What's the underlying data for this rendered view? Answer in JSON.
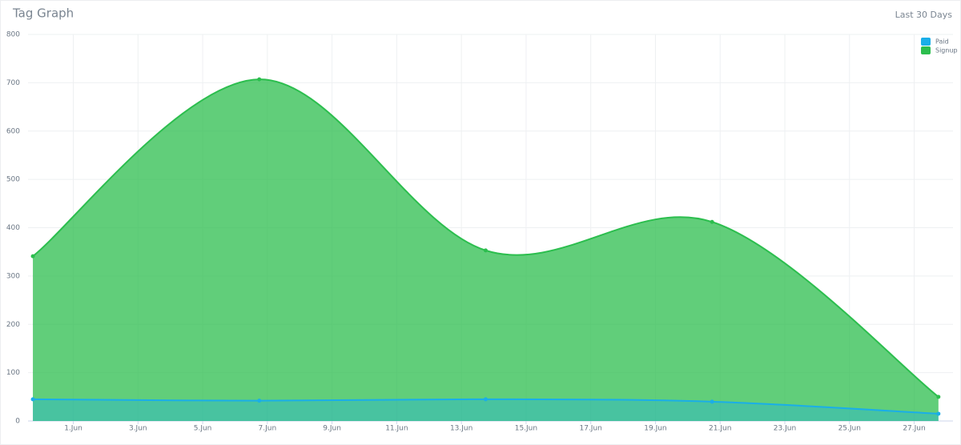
{
  "chart_data": {
    "type": "areaspline",
    "title": "Tag Graph",
    "subtitle": "Last 30 Days",
    "x": [
      -0.25,
      6.75,
      13.75,
      20.75,
      27.75
    ],
    "series": [
      {
        "name": "Signup",
        "color": "#2cbe4e",
        "values": [
          341,
          707,
          353,
          412,
          50
        ]
      },
      {
        "name": "Paid",
        "color": "#1aaee8",
        "values": [
          45,
          42,
          45,
          40,
          15
        ]
      }
    ],
    "legend_order": [
      "Paid",
      "Signup"
    ],
    "xlim": [
      -0.4,
      28.2
    ],
    "xticks": [
      {
        "value": 1,
        "label": "1.Jun"
      },
      {
        "value": 3,
        "label": "3.Jun"
      },
      {
        "value": 5,
        "label": "5.Jun"
      },
      {
        "value": 7,
        "label": "7.Jun"
      },
      {
        "value": 9,
        "label": "9.Jun"
      },
      {
        "value": 11,
        "label": "11.Jun"
      },
      {
        "value": 13,
        "label": "13.Jun"
      },
      {
        "value": 15,
        "label": "15.Jun"
      },
      {
        "value": 17,
        "label": "17.Jun"
      },
      {
        "value": 19,
        "label": "19.Jun"
      },
      {
        "value": 21,
        "label": "21.Jun"
      },
      {
        "value": 23,
        "label": "23.Jun"
      },
      {
        "value": 25,
        "label": "25.Jun"
      },
      {
        "value": 27,
        "label": "27.Jun"
      }
    ],
    "ylim": [
      0,
      800
    ],
    "yticks": [
      0,
      100,
      200,
      300,
      400,
      500,
      600,
      700,
      800
    ],
    "grid": true,
    "legend": "top-right"
  }
}
